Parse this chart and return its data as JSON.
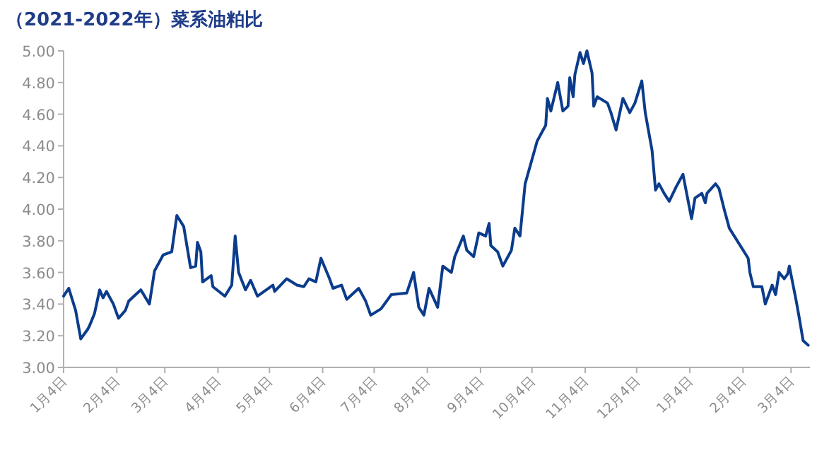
{
  "chart_data": {
    "type": "line",
    "title": "（2021-2022年）菜系油粕比",
    "x": [
      "2021-01-04",
      "2021-01-07",
      "2021-01-11",
      "2021-01-14",
      "2021-01-18",
      "2021-01-19",
      "2021-01-22",
      "2021-01-25",
      "2021-01-27",
      "2021-01-29",
      "2021-02-02",
      "2021-02-05",
      "2021-02-09",
      "2021-02-11",
      "2021-02-18",
      "2021-02-23",
      "2021-02-26",
      "2021-03-03",
      "2021-03-08",
      "2021-03-11",
      "2021-03-15",
      "2021-03-19",
      "2021-03-22",
      "2021-03-23",
      "2021-03-25",
      "2021-03-26",
      "2021-03-31",
      "2021-04-01",
      "2021-04-08",
      "2021-04-12",
      "2021-04-14",
      "2021-04-16",
      "2021-04-20",
      "2021-04-23",
      "2021-04-27",
      "2021-05-06",
      "2021-05-07",
      "2021-05-14",
      "2021-05-20",
      "2021-05-24",
      "2021-05-27",
      "2021-05-31",
      "2021-06-03",
      "2021-06-08",
      "2021-06-10",
      "2021-06-15",
      "2021-06-18",
      "2021-06-25",
      "2021-06-29",
      "2021-07-02",
      "2021-07-08",
      "2021-07-14",
      "2021-07-23",
      "2021-07-27",
      "2021-07-30",
      "2021-08-02",
      "2021-08-05",
      "2021-08-10",
      "2021-08-13",
      "2021-08-18",
      "2021-08-20",
      "2021-08-25",
      "2021-08-27",
      "2021-08-31",
      "2021-09-03",
      "2021-09-07",
      "2021-09-09",
      "2021-09-10",
      "2021-09-14",
      "2021-09-17",
      "2021-09-22",
      "2021-09-24",
      "2021-09-27",
      "2021-09-30",
      "2021-10-07",
      "2021-10-12",
      "2021-10-13",
      "2021-10-15",
      "2021-10-19",
      "2021-10-22",
      "2021-10-25",
      "2021-10-26",
      "2021-10-28",
      "2021-10-29",
      "2021-11-01",
      "2021-11-03",
      "2021-11-05",
      "2021-11-08",
      "2021-11-09",
      "2021-11-11",
      "2021-11-17",
      "2021-11-19",
      "2021-11-22",
      "2021-11-26",
      "2021-11-30",
      "2021-12-03",
      "2021-12-07",
      "2021-12-09",
      "2021-12-13",
      "2021-12-15",
      "2021-12-17",
      "2021-12-20",
      "2021-12-23",
      "2021-12-27",
      "2021-12-31",
      "2022-01-05",
      "2022-01-07",
      "2022-01-11",
      "2022-01-13",
      "2022-01-14",
      "2022-01-19",
      "2022-01-21",
      "2022-01-24",
      "2022-01-27",
      "2022-02-07",
      "2022-02-08",
      "2022-02-10",
      "2022-02-15",
      "2022-02-17",
      "2022-02-21",
      "2022-02-23",
      "2022-02-25",
      "2022-02-28",
      "2022-03-02",
      "2022-03-03",
      "2022-03-07",
      "2022-03-09",
      "2022-03-11",
      "2022-03-14"
    ],
    "series": [
      {
        "color": "#0b3c8c",
        "values": [
          3.45,
          3.5,
          3.36,
          3.18,
          3.24,
          3.26,
          3.34,
          3.49,
          3.44,
          3.48,
          3.4,
          3.31,
          3.36,
          3.42,
          3.49,
          3.4,
          3.61,
          3.71,
          3.73,
          3.96,
          3.89,
          3.63,
          3.64,
          3.79,
          3.73,
          3.54,
          3.58,
          3.51,
          3.45,
          3.52,
          3.83,
          3.6,
          3.49,
          3.55,
          3.45,
          3.52,
          3.48,
          3.56,
          3.52,
          3.51,
          3.56,
          3.54,
          3.69,
          3.56,
          3.5,
          3.52,
          3.43,
          3.5,
          3.42,
          3.33,
          3.37,
          3.46,
          3.47,
          3.6,
          3.38,
          3.33,
          3.5,
          3.38,
          3.64,
          3.6,
          3.7,
          3.83,
          3.74,
          3.7,
          3.85,
          3.83,
          3.91,
          3.77,
          3.73,
          3.64,
          3.74,
          3.88,
          3.83,
          4.16,
          4.43,
          4.53,
          4.7,
          4.62,
          4.8,
          4.62,
          4.65,
          4.83,
          4.71,
          4.85,
          4.99,
          4.92,
          5.0,
          4.86,
          4.65,
          4.71,
          4.67,
          4.61,
          4.5,
          4.7,
          4.61,
          4.67,
          4.81,
          4.61,
          4.37,
          4.12,
          4.16,
          4.1,
          4.05,
          4.14,
          4.22,
          3.94,
          4.07,
          4.1,
          4.04,
          4.1,
          4.16,
          4.13,
          4.0,
          3.88,
          3.69,
          3.6,
          3.51,
          3.51,
          3.4,
          3.52,
          3.46,
          3.6,
          3.56,
          3.59,
          3.64,
          3.42,
          3.3,
          3.17,
          3.14
        ]
      }
    ],
    "xlim": [
      "2021-01-04",
      "2022-03-15"
    ],
    "xticks": [
      {
        "value": "2021-01-04",
        "label": "1月4日"
      },
      {
        "value": "2021-02-04",
        "label": "2月4日"
      },
      {
        "value": "2021-03-04",
        "label": "3月4日"
      },
      {
        "value": "2021-04-04",
        "label": "4月4日"
      },
      {
        "value": "2021-05-04",
        "label": "5月4日"
      },
      {
        "value": "2021-06-04",
        "label": "6月4日"
      },
      {
        "value": "2021-07-04",
        "label": "7月4日"
      },
      {
        "value": "2021-08-04",
        "label": "8月4日"
      },
      {
        "value": "2021-09-04",
        "label": "9月4日"
      },
      {
        "value": "2021-10-04",
        "label": "10月4日"
      },
      {
        "value": "2021-11-04",
        "label": "11月4日"
      },
      {
        "value": "2021-12-04",
        "label": "12月4日"
      },
      {
        "value": "2022-01-04",
        "label": "1月4日"
      },
      {
        "value": "2022-02-04",
        "label": "2月4日"
      },
      {
        "value": "2022-03-04",
        "label": "3月4日"
      }
    ],
    "ylim": [
      3.0,
      5.0
    ],
    "yticks": [
      {
        "value": 3.0,
        "label": "3.00"
      },
      {
        "value": 3.2,
        "label": "3.20"
      },
      {
        "value": 3.4,
        "label": "3.40"
      },
      {
        "value": 3.6,
        "label": "3.60"
      },
      {
        "value": 3.8,
        "label": "3.80"
      },
      {
        "value": 4.0,
        "label": "4.00"
      },
      {
        "value": 4.2,
        "label": "4.20"
      },
      {
        "value": 4.4,
        "label": "4.40"
      },
      {
        "value": 4.6,
        "label": "4.60"
      },
      {
        "value": 4.8,
        "label": "4.80"
      },
      {
        "value": 5.0,
        "label": "5.00"
      }
    ],
    "grid": false,
    "marker": "none",
    "line_style": "solid"
  }
}
